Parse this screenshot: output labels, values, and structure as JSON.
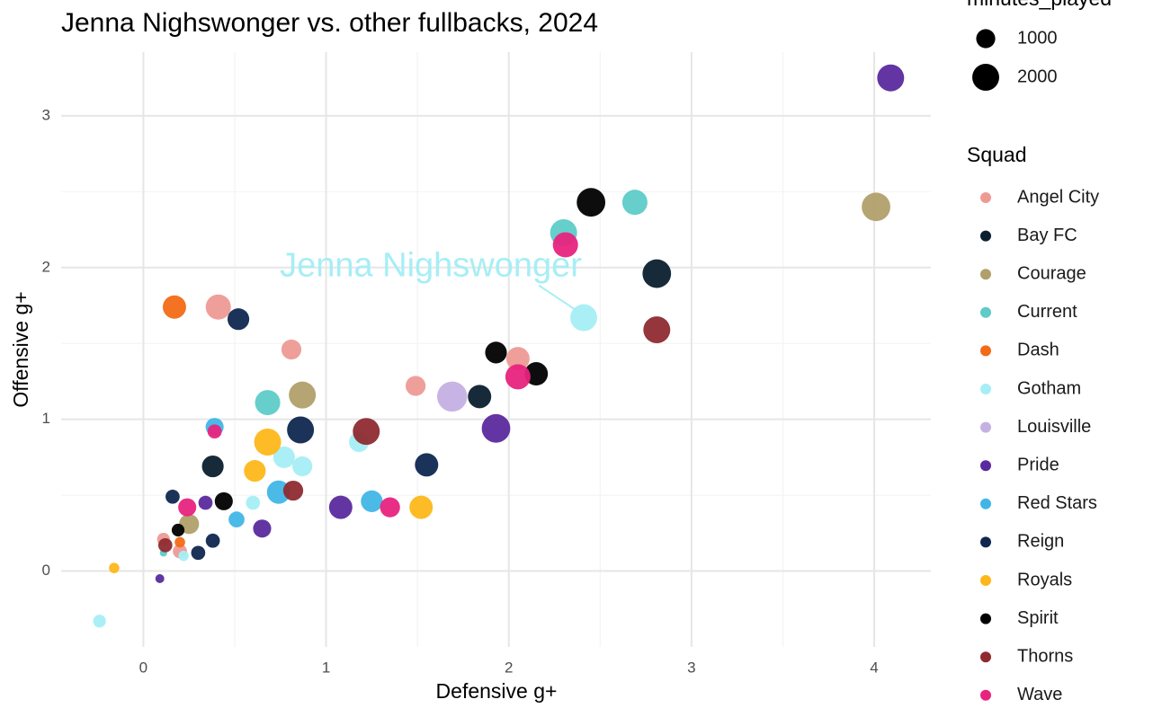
{
  "chart_data": {
    "type": "bubble",
    "title": "Jenna Nighswonger vs. other fullbacks, 2024",
    "x_label": "Defensive g+",
    "y_label": "Offensive g+",
    "xlim": [
      -0.45,
      4.31
    ],
    "ylim": [
      -0.5,
      3.42
    ],
    "xticks": [
      0,
      1,
      2,
      3,
      4
    ],
    "yticks": [
      0,
      1,
      2,
      3
    ],
    "grid": true,
    "annotation": "Jenna Nighswonger",
    "size_legend": {
      "title": "minutes_played",
      "values": [
        1000,
        2000
      ]
    },
    "legend_title": "Squad",
    "series": [
      {
        "name": "Angel City",
        "color": "#ee9a94",
        "x": [
          0.41,
          0.81,
          1.49,
          2.05,
          0.11,
          0.2
        ],
        "y": [
          1.74,
          1.46,
          1.22,
          1.4,
          0.21,
          0.13
        ],
        "size": [
          1750,
          1100,
          1100,
          1500,
          450,
          550
        ]
      },
      {
        "name": "Bay FC",
        "color": "#0b1f2e",
        "x": [
          0.38,
          1.84,
          2.81
        ],
        "y": [
          0.69,
          1.15,
          1.96
        ],
        "size": [
          1300,
          1500,
          2250
        ]
      },
      {
        "name": "Courage",
        "color": "#b0a06a",
        "x": [
          4.01,
          0.87,
          0.25
        ],
        "y": [
          2.4,
          1.16,
          0.31
        ],
        "size": [
          2250,
          2000,
          1100
        ]
      },
      {
        "name": "Current",
        "color": "#5ecbc8",
        "x": [
          2.69,
          2.3,
          0.68,
          0.11
        ],
        "y": [
          2.43,
          2.23,
          1.11,
          0.12
        ],
        "size": [
          1750,
          2000,
          1750,
          150
        ]
      },
      {
        "name": "Dash",
        "color": "#f26b16",
        "x": [
          0.17,
          0.2
        ],
        "y": [
          1.74,
          0.19
        ],
        "size": [
          1500,
          300
        ]
      },
      {
        "name": "Gotham",
        "color": "#a6eef5",
        "x": [
          2.41,
          1.18,
          0.77,
          0.87,
          0.6,
          -0.24,
          0.22
        ],
        "y": [
          1.67,
          0.85,
          0.75,
          0.69,
          0.45,
          -0.33,
          0.1
        ],
        "size": [
          2000,
          1100,
          1300,
          1100,
          550,
          450,
          300
        ]
      },
      {
        "name": "Louisville",
        "color": "#c5b0e3",
        "x": [
          1.69
        ],
        "y": [
          1.15
        ],
        "size": [
          2500
        ]
      },
      {
        "name": "Pride",
        "color": "#5b2a9e",
        "x": [
          4.09,
          1.93,
          1.08,
          0.65,
          0.34,
          0.09
        ],
        "y": [
          3.25,
          0.94,
          0.42,
          0.28,
          0.45,
          -0.05
        ],
        "size": [
          2000,
          2250,
          1500,
          900,
          550,
          220
        ]
      },
      {
        "name": "Red Stars",
        "color": "#41b6e6",
        "x": [
          0.39,
          0.74,
          1.25,
          0.51
        ],
        "y": [
          0.95,
          0.52,
          0.46,
          0.34
        ],
        "size": [
          900,
          1500,
          1300,
          700
        ]
      },
      {
        "name": "Reign",
        "color": "#0f2750",
        "x": [
          0.52,
          0.86,
          1.55,
          0.16,
          0.38,
          0.3
        ],
        "y": [
          1.66,
          0.93,
          0.7,
          0.49,
          0.2,
          0.12
        ],
        "size": [
          1300,
          2000,
          1500,
          550,
          550,
          550
        ]
      },
      {
        "name": "Royals",
        "color": "#fdb71a",
        "x": [
          0.68,
          0.61,
          1.52,
          -0.16
        ],
        "y": [
          0.85,
          0.66,
          0.42,
          0.02
        ],
        "size": [
          2000,
          1300,
          1500,
          300
        ]
      },
      {
        "name": "Spirit",
        "color": "#000000",
        "x": [
          2.45,
          2.15,
          1.93,
          0.44,
          0.19
        ],
        "y": [
          2.43,
          1.3,
          1.44,
          0.46,
          0.27
        ],
        "size": [
          2250,
          1500,
          1300,
          900,
          450
        ]
      },
      {
        "name": "Thorns",
        "color": "#8e2b30",
        "x": [
          2.81,
          1.22,
          0.82,
          0.12
        ],
        "y": [
          1.59,
          0.92,
          0.53,
          0.17
        ],
        "size": [
          2000,
          2000,
          1100,
          550
        ]
      },
      {
        "name": "Wave",
        "color": "#e8237f",
        "x": [
          2.31,
          2.05,
          1.35,
          0.24,
          0.39
        ],
        "y": [
          2.15,
          1.28,
          0.42,
          0.42,
          0.92
        ],
        "size": [
          1750,
          1750,
          1100,
          900,
          550
        ]
      }
    ]
  }
}
